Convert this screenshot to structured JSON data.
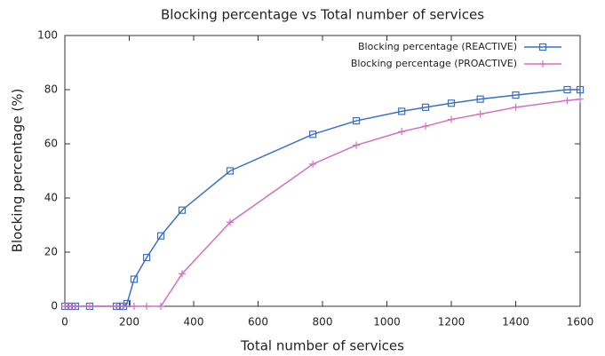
{
  "chart_data": {
    "type": "line",
    "title": "Blocking percentage vs Total number of services",
    "x_label": "Total number of services",
    "y_label": "Blocking percentage (%)",
    "xlim": [
      0,
      1600
    ],
    "xticks": [
      0,
      200,
      400,
      600,
      800,
      1000,
      1200,
      1400,
      1600
    ],
    "ylim": [
      0,
      100
    ],
    "yticks": [
      0,
      20,
      40,
      60,
      80,
      100
    ],
    "grid": false,
    "legend": "top-right",
    "series": [
      {
        "name": "Blocking percentage (REACTIVE)",
        "color": "#3a6fc4",
        "marker": "square",
        "x": [
          0,
          11,
          22,
          33,
          77,
          160,
          171,
          182,
          193,
          215,
          254,
          298,
          364,
          513,
          770,
          905,
          1046,
          1120,
          1200,
          1290,
          1400,
          1560,
          1600
        ],
        "values": [
          0,
          0,
          0,
          0,
          0,
          0,
          0,
          0,
          1,
          10,
          18,
          26,
          35.5,
          50,
          63.5,
          68.5,
          72,
          73.5,
          75,
          76.5,
          78,
          80,
          80
        ]
      },
      {
        "name": "Blocking percentage (PROACTIVE)",
        "color": "#d070c0",
        "marker": "plus",
        "x": [
          0,
          11,
          22,
          33,
          77,
          160,
          182,
          215,
          254,
          298,
          364,
          513,
          770,
          905,
          1046,
          1120,
          1200,
          1290,
          1400,
          1560,
          1600
        ],
        "values": [
          0,
          0,
          0,
          0,
          0,
          0,
          0,
          0,
          0,
          0,
          12,
          31,
          52.5,
          59.5,
          64.5,
          66.5,
          69,
          71,
          73.5,
          76,
          76.5
        ]
      }
    ]
  }
}
